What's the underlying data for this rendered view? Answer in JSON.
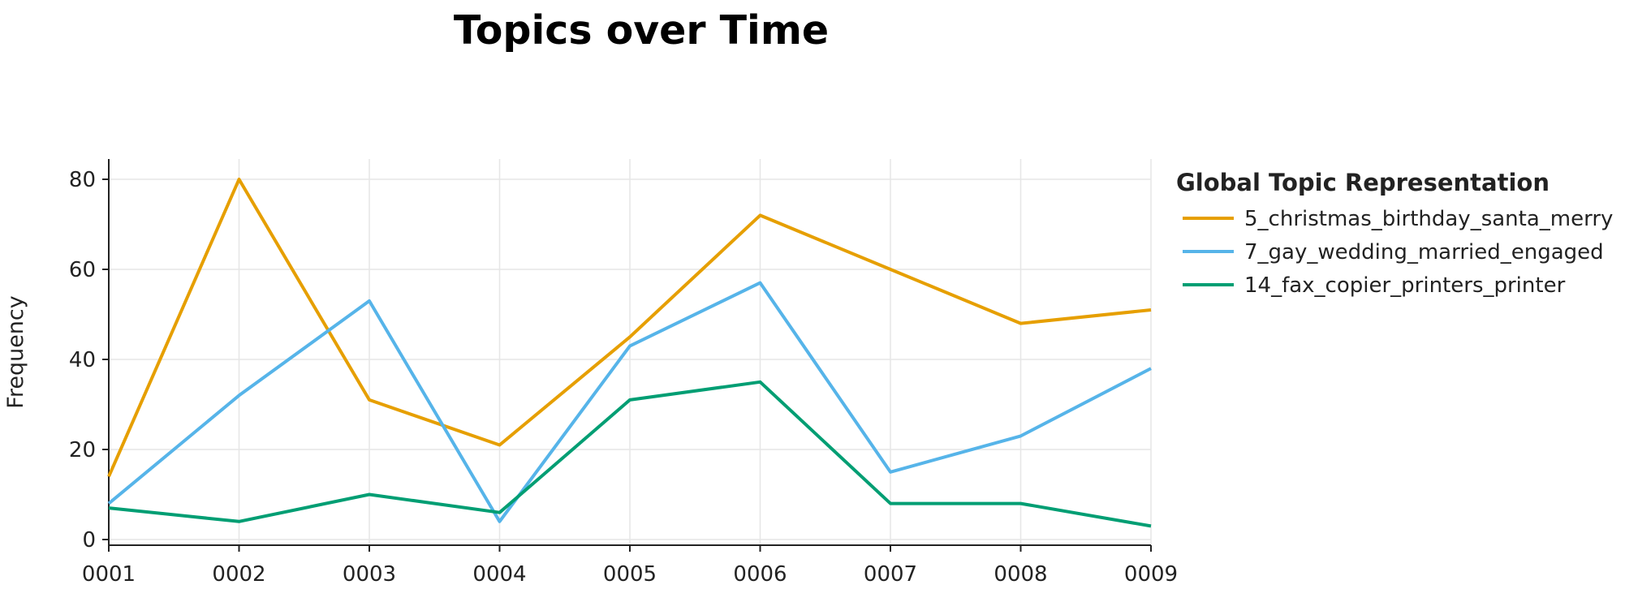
{
  "chart_data": {
    "type": "line",
    "title": "Topics over Time",
    "xlabel": "",
    "ylabel": "Frequency",
    "x": [
      "0001",
      "0002",
      "0003",
      "0004",
      "0005",
      "0006",
      "0007",
      "0008",
      "0009"
    ],
    "ylim": [
      0,
      84
    ],
    "yticks": [
      0,
      20,
      40,
      60,
      80
    ],
    "grid": true,
    "legend": {
      "title": "Global Topic Representation",
      "placement": "right"
    },
    "series": [
      {
        "name": "5_christmas_birthday_santa_merry",
        "color": "#E69F00",
        "values": [
          14,
          80,
          31,
          21,
          45,
          72,
          60,
          48,
          51
        ]
      },
      {
        "name": "7_gay_wedding_married_engaged",
        "color": "#56B4E9",
        "values": [
          8,
          32,
          53,
          4,
          43,
          57,
          15,
          23,
          38
        ]
      },
      {
        "name": "14_fax_copier_printers_printer",
        "color": "#009E73",
        "values": [
          7,
          4,
          10,
          6,
          31,
          35,
          8,
          8,
          3
        ]
      }
    ]
  }
}
